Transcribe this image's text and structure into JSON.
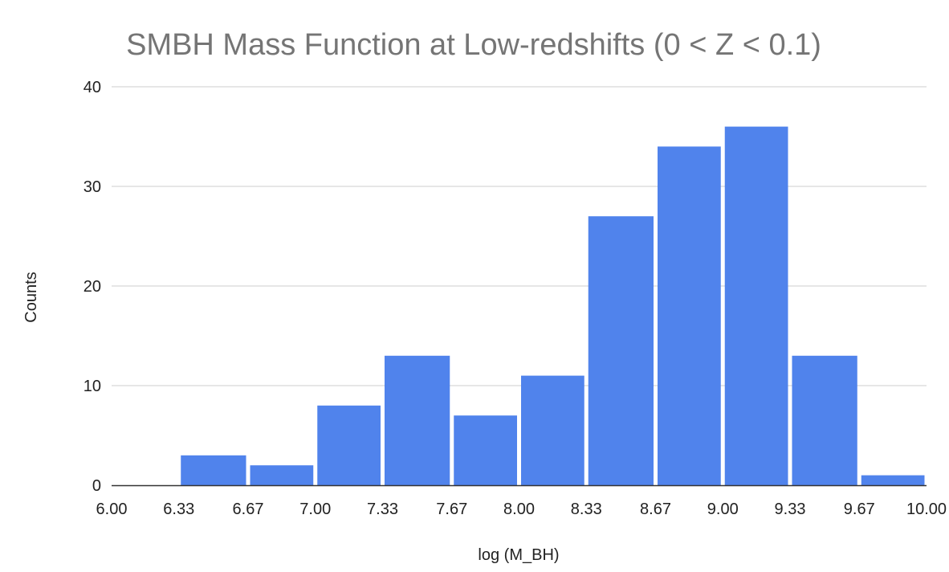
{
  "chart_data": {
    "type": "bar",
    "title": "SMBH Mass Function at Low-redshifts (0 < Z < 0.1)",
    "xlabel": "log (M_BH)",
    "ylabel": "Counts",
    "ylim": [
      0,
      40
    ],
    "yticks": [
      "0",
      "10",
      "20",
      "30",
      "40"
    ],
    "xlim": [
      6.0,
      10.0
    ],
    "xticks": [
      "6.00",
      "6.33",
      "6.67",
      "7.00",
      "7.33",
      "7.67",
      "8.00",
      "8.33",
      "8.67",
      "9.00",
      "9.33",
      "9.67",
      "10.00"
    ],
    "bins": [
      {
        "start": 6.0,
        "end": 6.33,
        "value": 0
      },
      {
        "start": 6.33,
        "end": 6.67,
        "value": 3
      },
      {
        "start": 6.67,
        "end": 7.0,
        "value": 2
      },
      {
        "start": 7.0,
        "end": 7.33,
        "value": 8
      },
      {
        "start": 7.33,
        "end": 7.67,
        "value": 13
      },
      {
        "start": 7.67,
        "end": 8.0,
        "value": 7
      },
      {
        "start": 8.0,
        "end": 8.33,
        "value": 11
      },
      {
        "start": 8.33,
        "end": 8.67,
        "value": 27
      },
      {
        "start": 8.67,
        "end": 9.0,
        "value": 34
      },
      {
        "start": 9.0,
        "end": 9.33,
        "value": 36
      },
      {
        "start": 9.33,
        "end": 9.67,
        "value": 13
      },
      {
        "start": 9.67,
        "end": 10.0,
        "value": 1
      }
    ],
    "grid": true,
    "legend": "none",
    "bar_color": "#5083EC"
  }
}
